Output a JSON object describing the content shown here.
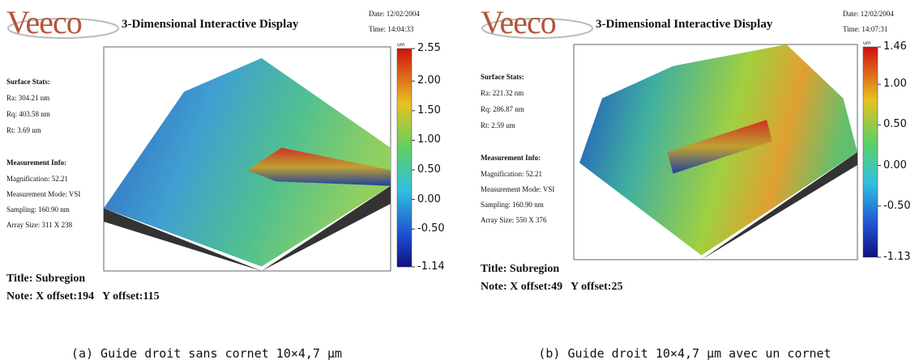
{
  "panels": [
    {
      "logo": "Veeco",
      "title": "3-Dimensional Interactive Display",
      "date": "Date: 12/02/2004",
      "time": "Time: 14:04:33",
      "surface_stats": {
        "heading": "Surface Stats:",
        "items": [
          "Ra: 304.21 nm",
          "Rq: 403.58 nm",
          "Rt: 3.69 um"
        ]
      },
      "measurement_info": {
        "heading": "Measurement Info:",
        "items": [
          "Magnification: 52.21",
          "Measurement Mode: VSI",
          "Sampling: 160.90 nm",
          "Array Size: 311 X 238"
        ]
      },
      "colorbar": {
        "unit": "um",
        "ticks": [
          "2.55",
          "2.00",
          "1.50",
          "1.00",
          "0.50",
          "0.00",
          "-0.50",
          "-1.14"
        ]
      },
      "subtitle": "Title: Subregion",
      "note": "Note: X offset:194   Y offset:115",
      "caption": "(a) Guide droit sans cornet 10×4,7 μm"
    },
    {
      "logo": "Veeco",
      "title": "3-Dimensional Interactive Display",
      "date": "Date: 12/02/2004",
      "time": "Time: 14:07:31",
      "surface_stats": {
        "heading": "Surface Stats:",
        "items": [
          "Ra: 221.32 nm",
          "Rq: 286.87 nm",
          "Rt: 2.59 um"
        ]
      },
      "measurement_info": {
        "heading": "Measurement Info:",
        "items": [
          "Magnification: 52.21",
          "Measurement Mode: VSI",
          "Sampling: 160.90 nm",
          "Array Size: 550 X 376"
        ]
      },
      "colorbar": {
        "unit": "um",
        "ticks": [
          "1.46",
          "1.00",
          "0.50",
          "0.00",
          "-0.50",
          "-1.13"
        ]
      },
      "subtitle": "Title: Subregion",
      "note": "Note: X offset:49   Y offset:25",
      "caption": "(b) Guide droit 10×4,7 μm avec un cornet"
    }
  ]
}
